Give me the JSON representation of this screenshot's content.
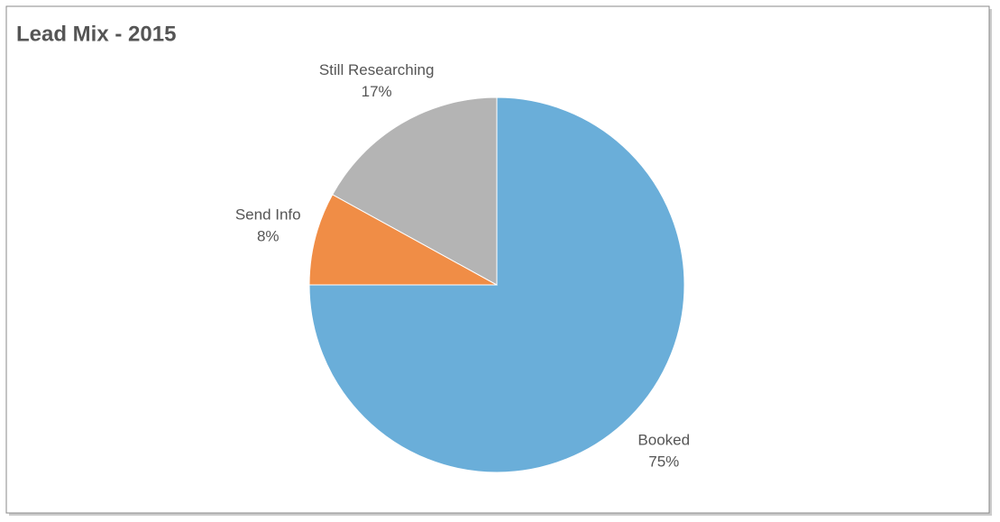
{
  "chart_data": {
    "type": "pie",
    "title": "Lead Mix - 2015",
    "categories": [
      "Booked",
      "Send Info",
      "Still Researching"
    ],
    "values": [
      75,
      8,
      17
    ],
    "value_labels": [
      "75%",
      "8%",
      "17%"
    ],
    "colors": [
      "#6aaed9",
      "#f08d46",
      "#b4b4b4"
    ]
  }
}
